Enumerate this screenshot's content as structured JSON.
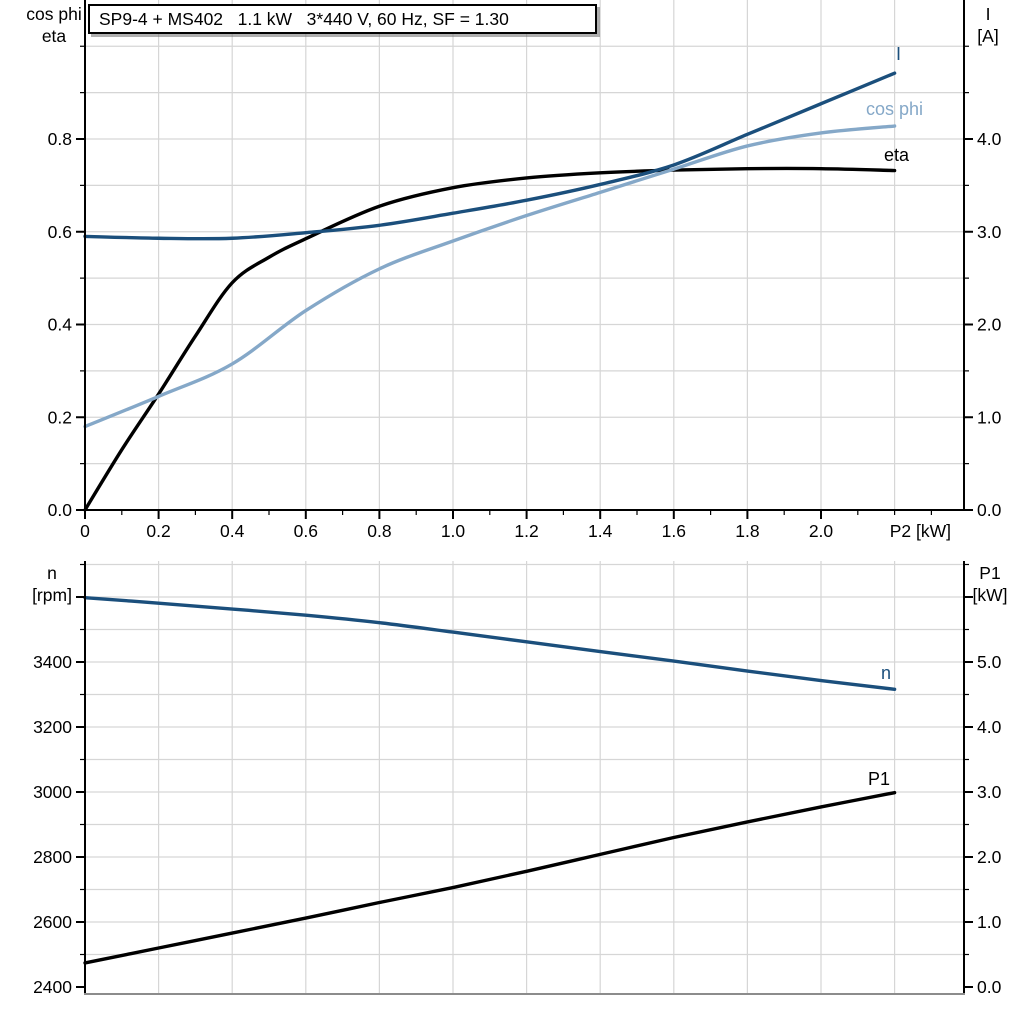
{
  "colors": {
    "dark_blue": "#1b4f7c",
    "light_blue": "#85a8c8",
    "black": "#000000",
    "grid": "#d6d6d6",
    "axis": "#000000",
    "baseline_gray": "#8c8c8c"
  },
  "chart_data": [
    {
      "type": "line",
      "panel": "top",
      "title": "SP9-4 + MS402   1.1 kW   3*440 V, 60 Hz, SF = 1.30",
      "xlabel": "P2 [kW]",
      "x_range": [
        0,
        2.39
      ],
      "grid": "on",
      "x_ticks": [
        {
          "v": 0,
          "label": "0"
        },
        {
          "v": 0.2,
          "label": "0.2"
        },
        {
          "v": 0.4,
          "label": "0.4"
        },
        {
          "v": 0.6,
          "label": "0.6"
        },
        {
          "v": 0.8,
          "label": "0.8"
        },
        {
          "v": 1.0,
          "label": "1.0"
        },
        {
          "v": 1.2,
          "label": "1.2"
        },
        {
          "v": 1.4,
          "label": "1.4"
        },
        {
          "v": 1.6,
          "label": "1.6"
        },
        {
          "v": 1.8,
          "label": "1.8"
        },
        {
          "v": 2.0,
          "label": "2.0"
        }
      ],
      "x_minor": {
        "from": 0.1,
        "to": 2.3,
        "step": 0.1
      },
      "grid_x": {
        "from": 0.2,
        "to": 2.2,
        "step": 0.2
      },
      "left_axis": {
        "title_lines": [
          "cos phi",
          "eta"
        ],
        "ylim": [
          0,
          1.1
        ],
        "ticks": [
          {
            "v": 0,
            "label": "0.0"
          },
          {
            "v": 0.2,
            "label": "0.2"
          },
          {
            "v": 0.4,
            "label": "0.4"
          },
          {
            "v": 0.6,
            "label": "0.6"
          },
          {
            "v": 0.8,
            "label": "0.8"
          }
        ],
        "minor": {
          "from": 0.1,
          "to": 1.0,
          "step": 0.1
        },
        "grid": {
          "from": 0.1,
          "to": 1.0,
          "step": 0.1
        }
      },
      "right_axis": {
        "title_lines": [
          "I",
          "[A]"
        ],
        "ylim": [
          0,
          5.5
        ],
        "ticks": [
          {
            "v": 0,
            "label": "0.0"
          },
          {
            "v": 1,
            "label": "1.0"
          },
          {
            "v": 2,
            "label": "2.0"
          },
          {
            "v": 3,
            "label": "3.0"
          },
          {
            "v": 4,
            "label": "4.0"
          }
        ],
        "minor": {
          "from": 0.5,
          "to": 5.0,
          "step": 0.5
        }
      },
      "series": [
        {
          "name": "eta",
          "label": "eta",
          "axis": "left",
          "color_key": "black",
          "x": [
            0,
            0.1,
            0.2,
            0.3,
            0.4,
            0.5,
            0.6,
            0.8,
            1.0,
            1.2,
            1.4,
            1.6,
            1.8,
            2.0,
            2.2
          ],
          "y": [
            0,
            0.13,
            0.25,
            0.375,
            0.49,
            0.545,
            0.585,
            0.655,
            0.695,
            0.716,
            0.727,
            0.733,
            0.736,
            0.736,
            0.732
          ]
        },
        {
          "name": "cos phi",
          "label": "cos phi",
          "axis": "left",
          "color_key": "light_blue",
          "x": [
            0,
            0.2,
            0.4,
            0.6,
            0.8,
            1.0,
            1.2,
            1.4,
            1.6,
            1.8,
            2.0,
            2.2
          ],
          "y": [
            0.18,
            0.245,
            0.315,
            0.43,
            0.52,
            0.58,
            0.635,
            0.685,
            0.735,
            0.785,
            0.813,
            0.828
          ]
        },
        {
          "name": "I",
          "label": "I",
          "axis": "right",
          "color_key": "dark_blue",
          "x": [
            0,
            0.2,
            0.4,
            0.6,
            0.8,
            1.0,
            1.2,
            1.4,
            1.6,
            1.8,
            2.0,
            2.2
          ],
          "y": [
            2.95,
            2.93,
            2.93,
            2.99,
            3.07,
            3.2,
            3.34,
            3.51,
            3.72,
            4.05,
            4.38,
            4.71
          ]
        }
      ]
    },
    {
      "type": "line",
      "panel": "bottom",
      "x_range": [
        0,
        2.39
      ],
      "grid": "on",
      "grid_x": {
        "from": 0.2,
        "to": 2.2,
        "step": 0.2
      },
      "left_axis": {
        "title_lines": [
          "n",
          "[rpm]"
        ],
        "ylim": [
          2380,
          3710
        ],
        "ticks": [
          {
            "v": 2400,
            "label": "2400"
          },
          {
            "v": 2600,
            "label": "2600"
          },
          {
            "v": 2800,
            "label": "2800"
          },
          {
            "v": 3000,
            "label": "3000"
          },
          {
            "v": 3200,
            "label": "3200"
          },
          {
            "v": 3400,
            "label": "3400"
          }
        ],
        "extra_major": [
          3600
        ],
        "minor": {
          "from": 2500,
          "to": 3700,
          "step": 200
        },
        "grid": {
          "from": 2500,
          "to": 3700,
          "step": 100
        }
      },
      "right_axis": {
        "title_lines": [
          "P1",
          "[kW]"
        ],
        "ylim": [
          0,
          6.6
        ],
        "ticks": [
          {
            "v": 0,
            "label": "0.0"
          },
          {
            "v": 1,
            "label": "1.0"
          },
          {
            "v": 2,
            "label": "2.0"
          },
          {
            "v": 3,
            "label": "3.0"
          },
          {
            "v": 4,
            "label": "4.0"
          },
          {
            "v": 5,
            "label": "5.0"
          }
        ],
        "extra_major": [
          6
        ],
        "minor": {
          "from": 0.5,
          "to": 6.5,
          "step": 0.5
        }
      },
      "series": [
        {
          "name": "n",
          "label": "n",
          "axis": "left",
          "color_key": "dark_blue",
          "x": [
            0,
            0.2,
            0.4,
            0.6,
            0.8,
            1.0,
            1.2,
            1.4,
            1.6,
            1.8,
            2.0,
            2.2
          ],
          "y": [
            3598,
            3581,
            3563,
            3544,
            3521,
            3492,
            3462,
            3432,
            3403,
            3372,
            3343,
            3316
          ]
        },
        {
          "name": "P1",
          "label": "P1",
          "axis": "right",
          "color_key": "black",
          "x": [
            0,
            0.2,
            0.4,
            0.6,
            0.8,
            1.0,
            1.2,
            1.4,
            1.6,
            1.8,
            2.0,
            2.2
          ],
          "y": [
            0.37,
            0.6,
            0.83,
            1.06,
            1.3,
            1.53,
            1.78,
            2.04,
            2.3,
            2.54,
            2.77,
            2.99
          ]
        }
      ]
    }
  ]
}
